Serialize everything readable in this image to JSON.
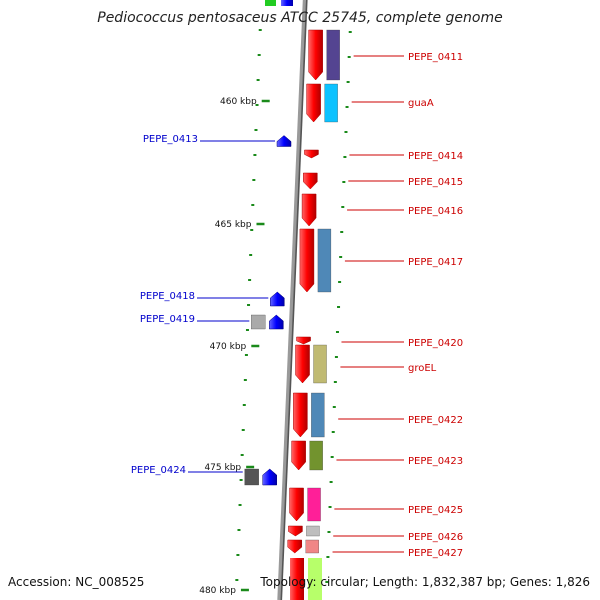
{
  "title": "Pediococcus pentosaceus ATCC 25745, complete genome",
  "footer": {
    "accession": "Accession: NC_008525",
    "info": "Topology: circular; Length: 1,832,387 bp; Genes: 1,826"
  },
  "colors": {
    "backbone": "#7a7a7a",
    "tick": "#1a8a1a",
    "right_label": "#cc0000",
    "left_label": "#0000cc",
    "red_gene": "#ff0000",
    "blue_gene": "#0000ff"
  },
  "scale": {
    "unit": "kbp",
    "ticks": [
      {
        "label": "460 kbp"
      },
      {
        "label": "465 kbp"
      },
      {
        "label": "470 kbp"
      },
      {
        "label": "475 kbp"
      },
      {
        "label": "480 kbp"
      }
    ]
  },
  "genes_right": [
    {
      "label": "PEPE_0411",
      "cog_color": "#4b3a8c"
    },
    {
      "label": "guaA",
      "cog_color": "#00bfff"
    },
    {
      "label": "PEPE_0414",
      "cog_color": null
    },
    {
      "label": "PEPE_0415",
      "cog_color": null
    },
    {
      "label": "PEPE_0416",
      "cog_color": null
    },
    {
      "label": "PEPE_0417",
      "cog_color": "#4682b4"
    },
    {
      "label": "PEPE_0420",
      "cog_color": null
    },
    {
      "label": "groEL",
      "cog_color": "#bdb76b"
    },
    {
      "label": "PEPE_0422",
      "cog_color": "#4682b4"
    },
    {
      "label": "PEPE_0423",
      "cog_color": "#6b8e23"
    },
    {
      "label": "PEPE_0425",
      "cog_color": "#ff1493"
    },
    {
      "label": "PEPE_0426",
      "cog_color": "#bbbbbb"
    },
    {
      "label": "PEPE_0427",
      "cog_color": "#f08080"
    }
  ],
  "genes_left": [
    {
      "label": "PEPE_0413",
      "cog_color": null
    },
    {
      "label": "PEPE_0418",
      "cog_color": null
    },
    {
      "label": "PEPE_0419",
      "cog_color": "#aaaaaa"
    },
    {
      "label": "PEPE_0424",
      "cog_color": "#555555"
    }
  ]
}
